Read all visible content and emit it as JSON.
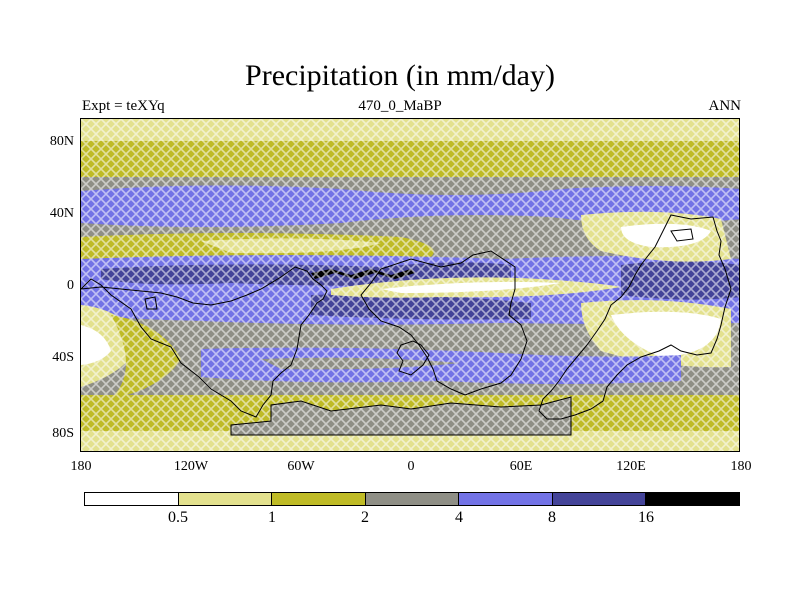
{
  "header": {
    "title": "Precipitation (in mm/day)",
    "left_subtitle": "Expt = teXYq",
    "center_subtitle": "470_0_MaBP",
    "right_subtitle": "ANN"
  },
  "axes": {
    "lat_labels": [
      "80N",
      "40N",
      "0",
      "40S",
      "80S"
    ],
    "lon_labels": [
      "180",
      "120W",
      "60W",
      "0",
      "60E",
      "120E",
      "180"
    ]
  },
  "colorbar": {
    "labels": [
      "0.5",
      "1",
      "2",
      "4",
      "8",
      "16"
    ],
    "colors": [
      "#ffffff",
      "#e3e18e",
      "#bfbb26",
      "#8f8f86",
      "#7373e6",
      "#444499",
      "#000000"
    ]
  },
  "map": {
    "projection": "cylindrical-equidistant",
    "land_outline_color": "#000000",
    "features": [
      "polar-dry-band",
      "midlatitude-storm-tracks",
      "equatorial-rain-belt",
      "subtropical-dry-zones"
    ]
  }
}
